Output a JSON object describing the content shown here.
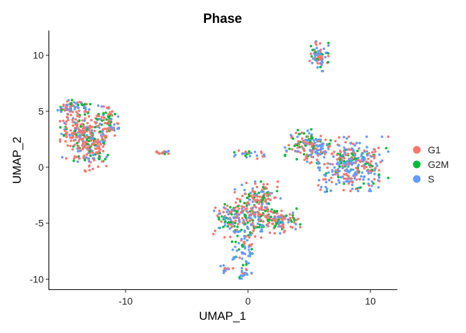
{
  "chart_data": {
    "type": "scatter",
    "title": "Phase",
    "xlabel": "UMAP_1",
    "ylabel": "UMAP_2",
    "xlim": [
      -16.3,
      12.2
    ],
    "ylim": [
      -10.9,
      12.2
    ],
    "xticks": [
      -10,
      0,
      10
    ],
    "yticks": [
      -10,
      -5,
      0,
      5,
      10
    ],
    "grid": false,
    "legend_position": "right",
    "series": [
      {
        "name": "G1",
        "color": "#F8766D"
      },
      {
        "name": "G2M",
        "color": "#00BA38"
      },
      {
        "name": "S",
        "color": "#619CFF"
      }
    ],
    "clusters": [
      {
        "center": [
          -14.3,
          5.4
        ],
        "spread": [
          0.6,
          0.35
        ],
        "n": 60,
        "mix": [
          0.5,
          0.2,
          0.3
        ]
      },
      {
        "center": [
          -13.6,
          3.2
        ],
        "spread": [
          0.8,
          1.1
        ],
        "n": 220,
        "mix": [
          0.6,
          0.15,
          0.25
        ]
      },
      {
        "center": [
          -12.7,
          1.6
        ],
        "spread": [
          0.7,
          0.9
        ],
        "n": 120,
        "mix": [
          0.6,
          0.2,
          0.2
        ]
      },
      {
        "center": [
          -11.6,
          4.1
        ],
        "spread": [
          0.45,
          0.6
        ],
        "n": 70,
        "mix": [
          0.5,
          0.3,
          0.2
        ]
      },
      {
        "center": [
          -11.0,
          3.5
        ],
        "spread": [
          0.3,
          0.15
        ],
        "n": 12,
        "mix": [
          0.2,
          0.1,
          0.7
        ]
      },
      {
        "center": [
          -7.0,
          1.3
        ],
        "spread": [
          0.35,
          0.1
        ],
        "n": 14,
        "mix": [
          0.6,
          0.1,
          0.3
        ]
      },
      {
        "center": [
          0.2,
          1.2
        ],
        "spread": [
          0.6,
          0.2
        ],
        "n": 25,
        "mix": [
          0.4,
          0.2,
          0.4
        ]
      },
      {
        "center": [
          5.8,
          9.9
        ],
        "spread": [
          0.35,
          0.6
        ],
        "n": 70,
        "mix": [
          0.35,
          0.25,
          0.4
        ]
      },
      {
        "center": [
          5.0,
          1.9
        ],
        "spread": [
          0.9,
          0.7
        ],
        "n": 160,
        "mix": [
          0.4,
          0.25,
          0.35
        ]
      },
      {
        "center": [
          8.6,
          0.3
        ],
        "spread": [
          1.3,
          1.1
        ],
        "n": 320,
        "mix": [
          0.35,
          0.2,
          0.45
        ]
      },
      {
        "center": [
          6.3,
          -2.1
        ],
        "spread": [
          0.3,
          0.15
        ],
        "n": 8,
        "mix": [
          0.3,
          0.3,
          0.4
        ]
      },
      {
        "center": [
          0.9,
          -2.6
        ],
        "spread": [
          0.9,
          0.6
        ],
        "n": 80,
        "mix": [
          0.5,
          0.3,
          0.2
        ]
      },
      {
        "center": [
          -1.3,
          -4.5
        ],
        "spread": [
          0.7,
          0.8
        ],
        "n": 110,
        "mix": [
          0.4,
          0.3,
          0.3
        ]
      },
      {
        "center": [
          0.6,
          -4.3
        ],
        "spread": [
          0.8,
          0.9
        ],
        "n": 120,
        "mix": [
          0.45,
          0.25,
          0.3
        ]
      },
      {
        "center": [
          2.5,
          -4.8
        ],
        "spread": [
          0.8,
          0.5
        ],
        "n": 110,
        "mix": [
          0.55,
          0.25,
          0.2
        ]
      },
      {
        "center": [
          -0.3,
          -7.3
        ],
        "spread": [
          0.5,
          0.9
        ],
        "n": 70,
        "mix": [
          0.3,
          0.2,
          0.5
        ]
      },
      {
        "center": [
          -1.9,
          -9.1
        ],
        "spread": [
          0.25,
          0.15
        ],
        "n": 14,
        "mix": [
          0.3,
          0.2,
          0.5
        ]
      },
      {
        "center": [
          -0.3,
          -9.5
        ],
        "spread": [
          0.3,
          0.2
        ],
        "n": 18,
        "mix": [
          0.2,
          0.2,
          0.6
        ]
      }
    ]
  }
}
